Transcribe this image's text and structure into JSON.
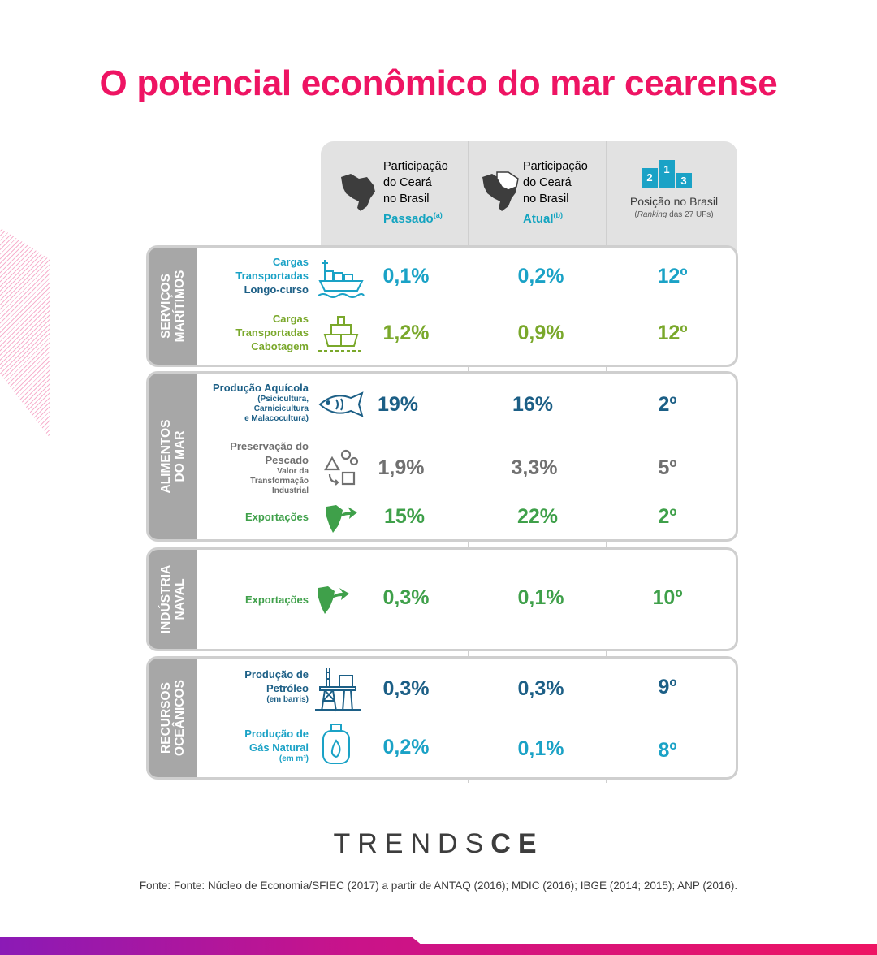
{
  "title": "O potencial econômico do mar cearense",
  "colors": {
    "title": "#ee1463",
    "teal": "#1aa2c6",
    "navy": "#1c5f86",
    "green": "#7aa82b",
    "gray": "#707070",
    "dark_green": "#3fa04a",
    "sidebar_gray": "#a7a7a7"
  },
  "header": {
    "col1": {
      "line1": "Participação",
      "line2": "do Ceará",
      "line3": "no Brasil",
      "emph": "Passado",
      "sup": "(a)",
      "icon": "brazil-map-icon"
    },
    "col2": {
      "line1": "Participação",
      "line2": "do Ceará",
      "line3": "no Brasil",
      "emph": "Atual",
      "sup": "(b)",
      "icon": "ceara-map-icon"
    },
    "col3": {
      "podium": [
        "2",
        "1",
        "3"
      ],
      "label": "Posição no Brasil",
      "sub_italic": "Ranking",
      "sub_rest": " das 27 UFs)",
      "sub_open": "(",
      "icon": "podium-icon"
    }
  },
  "groups": [
    {
      "label_lines": [
        "SERVIÇOS",
        "MARÍTIMOS"
      ],
      "rows": [
        {
          "lines": [
            "Cargas",
            "Transportadas"
          ],
          "emph": "Longo-curso",
          "icon": "cargo-ship-icon",
          "passado": "0,1%",
          "atual": "0,2%",
          "posicao": "12º",
          "color": "teal"
        },
        {
          "lines": [
            "Cargas",
            "Transportadas"
          ],
          "emph": "Cabotagem",
          "icon": "coastal-ship-icon",
          "passado": "1,2%",
          "atual": "0,9%",
          "posicao": "12º",
          "color": "green"
        }
      ]
    },
    {
      "label_lines": [
        "ALIMENTOS",
        "DO MAR"
      ],
      "rows": [
        {
          "main": "Produção Aquícola",
          "small": [
            "(Psicicultura,",
            "Carnicicultura",
            "e Malacocultura)"
          ],
          "icon": "fish-icon",
          "passado": "19%",
          "atual": "16%",
          "posicao": "2º",
          "color": "navy"
        },
        {
          "main_lines": [
            "Preservação do",
            "Pescado"
          ],
          "small": [
            "Valor da",
            "Transformação",
            "Industrial"
          ],
          "icon": "gears-shapes-icon",
          "passado": "1,9%",
          "atual": "3,3%",
          "posicao": "5º",
          "color": "gray"
        },
        {
          "main": "Exportações",
          "icon": "export-arrow-icon",
          "passado": "15%",
          "atual": "22%",
          "posicao": "2º",
          "color": "dark_green"
        }
      ]
    },
    {
      "label_lines": [
        "INDÚSTRIA",
        "NAVAL"
      ],
      "rows": [
        {
          "main": "Exportações",
          "icon": "export-arrow-icon",
          "passado": "0,3%",
          "atual": "0,1%",
          "posicao": "10º",
          "color": "dark_green"
        }
      ]
    },
    {
      "label_lines": [
        "RECURSOS",
        "OCEÂNICOS"
      ],
      "rows": [
        {
          "main_lines": [
            "Produção de",
            "Petróleo"
          ],
          "small": [
            "(em barris)"
          ],
          "icon": "oil-platform-icon",
          "passado": "0,3%",
          "atual": "0,3%",
          "posicao": "9º",
          "color": "navy"
        },
        {
          "main_lines": [
            "Produção de",
            "Gás Natural"
          ],
          "small": [
            "(em m³)"
          ],
          "icon": "gas-cylinder-icon",
          "passado": "0,2%",
          "atual": "0,1%",
          "posicao": "8º",
          "color": "teal"
        }
      ]
    }
  ],
  "logo": {
    "thin": "TRENDS",
    "thick": "CE"
  },
  "source": "Fonte: Fonte: Núcleo de Economia/SFIEC (2017) a partir de ANTAQ (2016); MDIC (2016); IBGE (2014; 2015); ANP (2016)."
}
